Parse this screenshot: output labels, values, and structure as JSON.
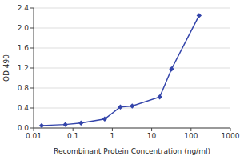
{
  "chart_data": {
    "type": "line",
    "x": [
      0.016,
      0.064,
      0.16,
      0.64,
      1.6,
      3.2,
      16,
      32,
      160
    ],
    "values": [
      0.05,
      0.07,
      0.1,
      0.18,
      0.42,
      0.44,
      0.62,
      1.18,
      2.25
    ],
    "xlabel": "Recombinant Protein Concentration (ng/ml)",
    "ylabel": "OD 490",
    "xlim": [
      0.01,
      1000
    ],
    "ylim": [
      0.0,
      2.4
    ],
    "xticks": [
      0.01,
      0.1,
      1,
      10,
      100,
      1000
    ],
    "yticks": [
      {
        "value": 0.0,
        "label": "0.0"
      },
      0.4,
      0.8,
      1.2,
      1.6,
      {
        "value": 2.0,
        "label": "2.0"
      },
      2.4
    ],
    "log": "x",
    "grid": true,
    "color": "#3344aa",
    "marker": "diamond"
  }
}
